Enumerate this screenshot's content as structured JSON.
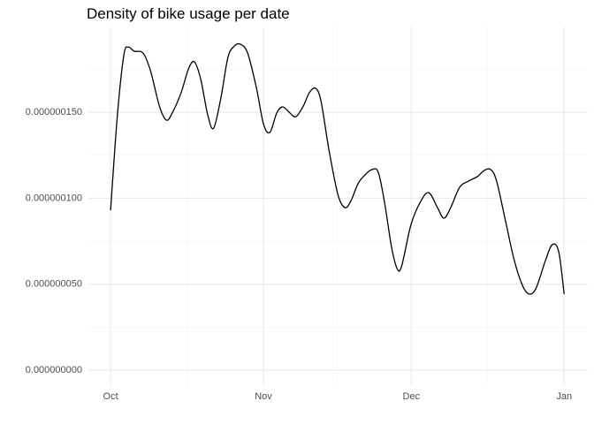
{
  "chart_data": {
    "type": "line",
    "title": "Density of bike usage per date",
    "x": [
      0,
      1.4,
      2.7,
      3.6,
      4.8,
      6.6,
      8.1,
      9.9,
      11.3,
      12.5,
      14.3,
      15.8,
      17.0,
      18.3,
      19.7,
      20.9,
      22.4,
      23.8,
      25.1,
      26.3,
      27.8,
      29.6,
      31.0,
      32.3,
      33.7,
      34.9,
      36.4,
      37.6,
      39.1,
      40.3,
      41.6,
      42.7,
      44.3,
      46.1,
      47.5,
      48.7,
      50.2,
      51.6,
      53.0,
      54.3,
      55.6,
      57.0,
      58.2,
      59.1,
      60.9,
      62.7,
      64.5,
      66.3,
      67.6,
      69.0,
      70.8,
      72.6,
      74.4,
      75.8,
      77.1,
      78.3,
      80.1,
      81.9,
      83.7,
      85.1,
      86.4,
      88.2,
      89.6,
      90.9,
      92
    ],
    "series": [
      {
        "color": "#000000",
        "values": [
          9.3e-08,
          1.49e-07,
          1.835e-07,
          1.88e-07,
          1.856e-07,
          1.845e-07,
          1.742e-07,
          1.537e-07,
          1.455e-07,
          1.496e-07,
          1.614e-07,
          1.753e-07,
          1.794e-07,
          1.691e-07,
          1.486e-07,
          1.408e-07,
          1.588e-07,
          1.82e-07,
          1.886e-07,
          1.897e-07,
          1.845e-07,
          1.64e-07,
          1.434e-07,
          1.383e-07,
          1.496e-07,
          1.532e-07,
          1.496e-07,
          1.475e-07,
          1.537e-07,
          1.614e-07,
          1.64e-07,
          1.563e-07,
          1.28e-07,
          1.023e-07,
          9.46e-08,
          9.82e-08,
          1.085e-07,
          1.136e-07,
          1.167e-07,
          1.151e-07,
          9.71e-08,
          7.14e-08,
          5.86e-08,
          6.12e-08,
          8.43e-08,
          9.71e-08,
          1.033e-07,
          9.46e-08,
          8.84e-08,
          9.46e-08,
          1.064e-07,
          1.1e-07,
          1.126e-07,
          1.162e-07,
          1.167e-07,
          1.1e-07,
          8.69e-08,
          6.37e-08,
          4.83e-08,
          4.42e-08,
          4.83e-08,
          6.37e-08,
          7.3e-08,
          6.89e-08,
          4.42e-08
        ]
      }
    ],
    "xlim": [
      -4.5,
      96.8
    ],
    "xticks": [
      {
        "value": 0,
        "label": "Oct"
      },
      {
        "value": 31,
        "label": "Nov"
      },
      {
        "value": 61,
        "label": "Dec"
      },
      {
        "value": 92,
        "label": "Jan"
      }
    ],
    "ylim": [
      -9.3e-09,
      2e-07
    ],
    "yticks": [
      {
        "value": 0,
        "label": "0.000000000"
      },
      {
        "value": 5e-08,
        "label": "0.000000050"
      },
      {
        "value": 1e-07,
        "label": "0.000000100"
      },
      {
        "value": 1.5e-07,
        "label": "0.000000150"
      }
    ],
    "grid": true,
    "minor_grid": true
  }
}
